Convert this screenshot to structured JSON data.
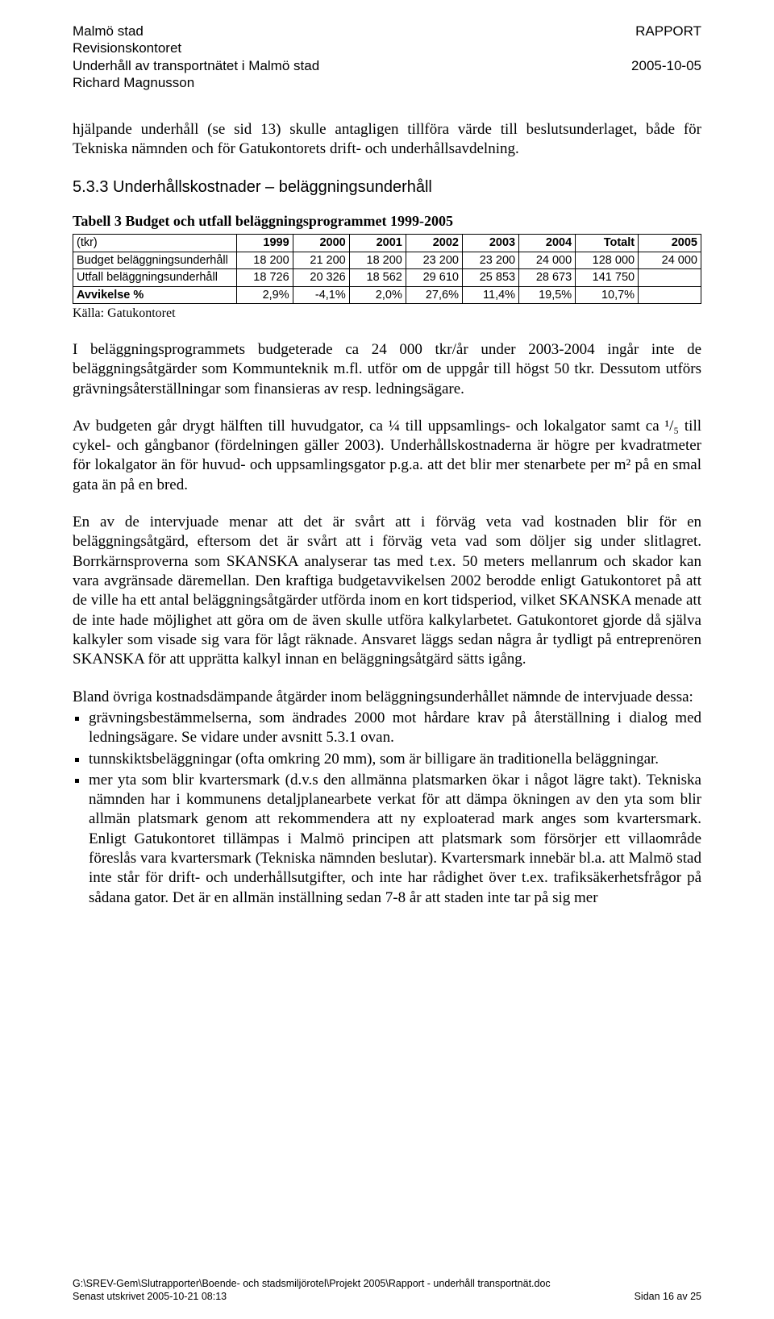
{
  "header": {
    "org": "Malmö stad",
    "doc_type": "RAPPORT",
    "office": "Revisionskontoret",
    "title_line": "Underhåll av transportnätet i Malmö stad",
    "date": "2005-10-05",
    "author": "Richard Magnusson"
  },
  "intro_para": "hjälpande underhåll (se sid 13) skulle antagligen tillföra värde till beslutsunderlaget, både för Tekniska nämnden och för Gatukontorets drift- och underhållsavdelning.",
  "section_heading": "5.3.3  Underhållskostnader – beläggningsunderhåll",
  "table": {
    "caption": "Tabell 3 Budget och utfall beläggningsprogrammet 1999-2005",
    "col_widths_pct": [
      26,
      9,
      9,
      9,
      9,
      9,
      9,
      10,
      10
    ],
    "header_cells": [
      "(tkr)",
      "1999",
      "2000",
      "2001",
      "2002",
      "2003",
      "2004",
      "Totalt",
      "2005"
    ],
    "rows": [
      {
        "label": "Budget beläggningsunderhåll",
        "bold_label": false,
        "cells": [
          "18 200",
          "21 200",
          "18 200",
          "23 200",
          "23 200",
          "24 000",
          "128 000",
          "24 000"
        ]
      },
      {
        "label": "Utfall  beläggningsunderhåll",
        "bold_label": false,
        "cells": [
          "18 726",
          "20 326",
          "18 562",
          "29 610",
          "25 853",
          "28 673",
          "141 750",
          ""
        ]
      },
      {
        "label": "Avvikelse %",
        "bold_label": true,
        "cells": [
          "2,9%",
          "-4,1%",
          "2,0%",
          "27,6%",
          "11,4%",
          "19,5%",
          "10,7%",
          ""
        ]
      }
    ],
    "source": "Källa: Gatukontoret"
  },
  "para2": "I beläggningsprogrammets budgeterade ca 24 000 tkr/år under 2003-2004 ingår inte de beläggningsåtgärder som Kommunteknik m.fl. utför om de uppgår till högst 50 tkr. Dessutom utförs grävningsåterställningar som finansieras av resp. ledningsägare.",
  "para3": "Av budgeten går drygt hälften till huvudgator, ca ¼ till uppsamlings- och lokalgator samt ca ¹/₅ till cykel- och gångbanor (fördelningen gäller 2003). Underhållskostnaderna är högre per kvadratmeter för lokalgator än för huvud- och uppsamlingsgator p.g.a. att det blir mer stenarbete per m² på en smal gata än på en bred.",
  "para4": "En av de intervjuade menar att det är svårt att i förväg veta vad kostnaden blir för en beläggningsåtgärd, eftersom det är svårt att i förväg veta vad som döljer sig under slitlagret. Borrkärnsproverna som SKANSKA analyserar tas med t.ex. 50 meters mellanrum och skador kan vara avgränsade däremellan. Den kraftiga budgetavvikelsen 2002 berodde enligt Gatukontoret på att de ville ha ett antal beläggningsåtgärder utförda inom en kort tidsperiod, vilket SKANSKA menade att de inte hade möjlighet att göra om de även skulle utföra kalkylarbetet. Gatukontoret gjorde då själva kalkyler som visade sig vara för lågt räknade. Ansvaret läggs sedan några år tydligt på entreprenören SKANSKA för att upprätta kalkyl innan en beläggningsåtgärd sätts igång.",
  "bullets_intro": "Bland övriga kostnadsdämpande åtgärder inom beläggningsunderhållet nämnde de intervjuade dessa:",
  "bullets": [
    "grävningsbestämmelserna, som ändrades 2000 mot hårdare krav på återställning i dialog med ledningsägare. Se vidare under avsnitt 5.3.1 ovan.",
    "tunnskiktsbeläggningar (ofta omkring 20 mm), som är billigare än traditionella beläggningar.",
    "mer yta som blir kvartersmark (d.v.s den allmänna platsmarken ökar i något lägre takt). Tekniska nämnden har i kommunens detaljplanearbete verkat för att dämpa ökningen av den yta som blir allmän platsmark genom att rekommendera att ny exploaterad mark anges som kvartersmark. Enligt Gatukontoret tillämpas i Malmö principen att platsmark som försörjer ett villaområde föreslås vara kvartersmark (Tekniska nämnden beslutar). Kvartersmark innebär bl.a. att Malmö stad inte står för drift- och underhållsutgifter, och inte har rådighet över t.ex. trafiksäkerhetsfrågor på sådana gator. Det är en allmän inställning sedan 7-8 år att staden inte tar på sig mer"
  ],
  "footer": {
    "path": "G:\\SREV-Gem\\Slutrapporter\\Boende- och stadsmiljörotel\\Projekt 2005\\Rapport - underhåll transportnät.doc",
    "printed": "Senast utskrivet 2005-10-21 08:13",
    "page": "Sidan 16 av 25"
  }
}
